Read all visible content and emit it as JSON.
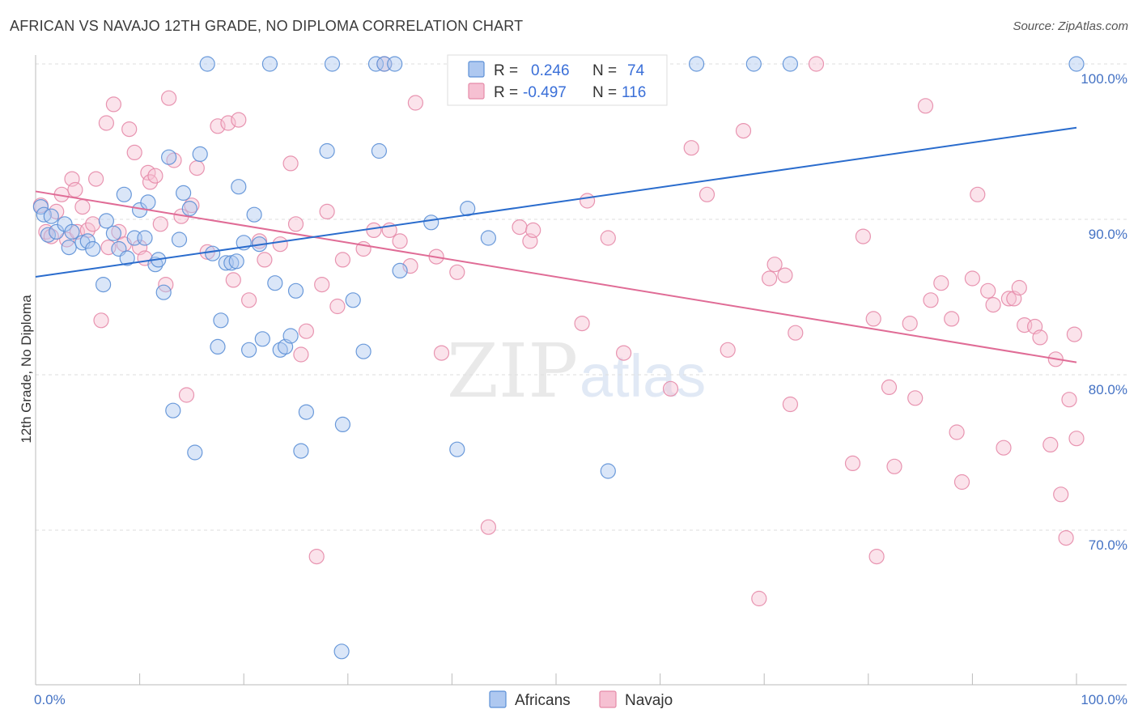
{
  "header": {
    "title": "AFRICAN VS NAVAJO 12TH GRADE, NO DIPLOMA CORRELATION CHART",
    "source": "Source: ZipAtlas.com"
  },
  "watermark": {
    "zip": "ZIP",
    "atlas": "atlas"
  },
  "colors": {
    "africans_fill": "#aec8f0",
    "africans_stroke": "#5b8fd6",
    "africans_line": "#2a6ccd",
    "navajo_fill": "#f6c0d2",
    "navajo_stroke": "#e58aa8",
    "navajo_line": "#e06c96"
  },
  "legend": {
    "r_label": "R =",
    "n_label": "N =",
    "africans": {
      "r": "0.246",
      "n": "74"
    },
    "navajo": {
      "r": "-0.497",
      "n": "116"
    }
  },
  "bottom_legend": {
    "africans": "Africans",
    "navajo": "Navajo"
  },
  "chart_data": {
    "type": "scatter",
    "title": "AFRICAN VS NAVAJO 12TH GRADE, NO DIPLOMA CORRELATION CHART",
    "xlabel": "",
    "ylabel": "12th Grade, No Diploma",
    "x_tick_labels": [
      "0.0%",
      "100.0%"
    ],
    "y_tick_labels": [
      "100.0%",
      "90.0%",
      "80.0%",
      "70.0%"
    ],
    "xlim": [
      0,
      100
    ],
    "ylim": [
      60.5,
      102
    ],
    "grid": true,
    "legend_position": "top-center",
    "series": [
      {
        "name": "Africans",
        "trend": {
          "x": [
            0,
            100
          ],
          "y": [
            86.3,
            95.9
          ]
        },
        "points": [
          [
            0.5,
            90.8
          ],
          [
            0.8,
            90.3
          ],
          [
            1.2,
            89.0
          ],
          [
            1.5,
            90.2
          ],
          [
            2.0,
            89.2
          ],
          [
            2.8,
            89.7
          ],
          [
            3.2,
            88.2
          ],
          [
            3.5,
            89.2
          ],
          [
            4.5,
            88.5
          ],
          [
            5.0,
            88.6
          ],
          [
            5.5,
            88.1
          ],
          [
            6.5,
            85.8
          ],
          [
            6.8,
            89.9
          ],
          [
            7.5,
            89.1
          ],
          [
            8.0,
            88.1
          ],
          [
            8.5,
            91.6
          ],
          [
            8.8,
            87.5
          ],
          [
            9.5,
            88.8
          ],
          [
            10.0,
            90.6
          ],
          [
            10.5,
            88.8
          ],
          [
            10.8,
            91.1
          ],
          [
            11.5,
            87.1
          ],
          [
            11.8,
            87.4
          ],
          [
            12.3,
            85.3
          ],
          [
            12.8,
            94.0
          ],
          [
            13.2,
            77.7
          ],
          [
            13.8,
            88.7
          ],
          [
            14.2,
            91.7
          ],
          [
            14.8,
            90.7
          ],
          [
            15.3,
            75.0
          ],
          [
            15.8,
            94.2
          ],
          [
            16.5,
            100.0
          ],
          [
            17.0,
            87.8
          ],
          [
            17.5,
            81.8
          ],
          [
            17.8,
            83.5
          ],
          [
            18.3,
            87.2
          ],
          [
            18.8,
            87.2
          ],
          [
            19.3,
            87.3
          ],
          [
            19.5,
            92.1
          ],
          [
            20.0,
            88.5
          ],
          [
            20.5,
            81.6
          ],
          [
            21.0,
            90.3
          ],
          [
            21.5,
            88.4
          ],
          [
            21.8,
            82.3
          ],
          [
            22.5,
            100.0
          ],
          [
            23.0,
            85.9
          ],
          [
            23.5,
            81.6
          ],
          [
            24.0,
            81.8
          ],
          [
            24.5,
            82.5
          ],
          [
            25.0,
            85.4
          ],
          [
            25.5,
            75.1
          ],
          [
            26.0,
            77.6
          ],
          [
            28.0,
            94.4
          ],
          [
            28.5,
            100.0
          ],
          [
            29.5,
            76.8
          ],
          [
            30.5,
            84.8
          ],
          [
            31.5,
            81.5
          ],
          [
            32.7,
            100.0
          ],
          [
            33.0,
            94.4
          ],
          [
            33.5,
            100.0
          ],
          [
            34.5,
            100.0
          ],
          [
            35.0,
            86.7
          ],
          [
            38.0,
            89.8
          ],
          [
            40.5,
            75.2
          ],
          [
            41.5,
            90.7
          ],
          [
            43.5,
            88.8
          ],
          [
            52.0,
            100.0
          ],
          [
            55.0,
            73.8
          ],
          [
            63.5,
            100.0
          ],
          [
            69.0,
            100.0
          ],
          [
            72.5,
            100.0
          ],
          [
            100.0,
            100.0
          ],
          [
            29.4,
            62.2
          ],
          [
            56.5,
            100.0
          ]
        ]
      },
      {
        "name": "Navajo",
        "trend": {
          "x": [
            0,
            100
          ],
          "y": [
            91.8,
            80.8
          ]
        },
        "points": [
          [
            0.5,
            90.9
          ],
          [
            1.0,
            89.2
          ],
          [
            1.5,
            88.9
          ],
          [
            2.0,
            90.5
          ],
          [
            2.5,
            91.6
          ],
          [
            3.0,
            88.7
          ],
          [
            3.5,
            92.6
          ],
          [
            3.8,
            91.9
          ],
          [
            4.0,
            89.2
          ],
          [
            4.5,
            90.8
          ],
          [
            5.0,
            89.3
          ],
          [
            5.5,
            89.7
          ],
          [
            5.8,
            92.6
          ],
          [
            6.3,
            83.5
          ],
          [
            6.8,
            96.2
          ],
          [
            7.0,
            88.2
          ],
          [
            7.5,
            97.4
          ],
          [
            8.0,
            89.2
          ],
          [
            8.5,
            88.4
          ],
          [
            9.0,
            95.8
          ],
          [
            9.5,
            94.3
          ],
          [
            10.0,
            88.2
          ],
          [
            10.5,
            87.5
          ],
          [
            10.8,
            93.0
          ],
          [
            11.0,
            92.4
          ],
          [
            11.5,
            92.8
          ],
          [
            12.0,
            89.7
          ],
          [
            12.5,
            85.8
          ],
          [
            12.8,
            97.8
          ],
          [
            13.3,
            93.8
          ],
          [
            14.0,
            90.2
          ],
          [
            14.5,
            78.7
          ],
          [
            15.0,
            90.9
          ],
          [
            15.5,
            93.3
          ],
          [
            16.5,
            87.9
          ],
          [
            17.5,
            96.0
          ],
          [
            18.5,
            96.2
          ],
          [
            19.0,
            86.1
          ],
          [
            19.5,
            96.4
          ],
          [
            20.5,
            84.8
          ],
          [
            21.5,
            88.6
          ],
          [
            22.0,
            87.4
          ],
          [
            23.5,
            88.4
          ],
          [
            24.5,
            93.6
          ],
          [
            25.0,
            89.7
          ],
          [
            25.5,
            81.3
          ],
          [
            26.0,
            82.8
          ],
          [
            27.0,
            68.3
          ],
          [
            27.5,
            85.8
          ],
          [
            28.0,
            90.5
          ],
          [
            29.0,
            84.4
          ],
          [
            29.5,
            87.4
          ],
          [
            31.5,
            88.1
          ],
          [
            32.5,
            89.3
          ],
          [
            33.5,
            100.0
          ],
          [
            34.0,
            89.3
          ],
          [
            35.0,
            88.6
          ],
          [
            36.0,
            87.0
          ],
          [
            36.5,
            97.5
          ],
          [
            38.5,
            87.6
          ],
          [
            39.0,
            81.4
          ],
          [
            40.5,
            86.6
          ],
          [
            43.5,
            70.2
          ],
          [
            46.5,
            89.5
          ],
          [
            47.5,
            88.6
          ],
          [
            47.8,
            89.3
          ],
          [
            52.5,
            83.3
          ],
          [
            53.0,
            91.2
          ],
          [
            55.0,
            88.8
          ],
          [
            56.5,
            81.4
          ],
          [
            58.0,
            100.0
          ],
          [
            59.5,
            100.0
          ],
          [
            61.0,
            79.1
          ],
          [
            63.0,
            94.6
          ],
          [
            64.5,
            91.6
          ],
          [
            66.5,
            81.6
          ],
          [
            68.0,
            95.7
          ],
          [
            69.5,
            65.6
          ],
          [
            70.5,
            86.2
          ],
          [
            71.0,
            87.1
          ],
          [
            72.0,
            86.4
          ],
          [
            72.5,
            78.1
          ],
          [
            73.0,
            82.7
          ],
          [
            75.0,
            100.0
          ],
          [
            78.5,
            74.3
          ],
          [
            79.5,
            88.9
          ],
          [
            80.5,
            83.6
          ],
          [
            80.8,
            68.3
          ],
          [
            82.0,
            79.2
          ],
          [
            82.5,
            74.1
          ],
          [
            84.0,
            83.3
          ],
          [
            84.5,
            78.5
          ],
          [
            85.5,
            97.3
          ],
          [
            86.0,
            84.8
          ],
          [
            87.0,
            85.9
          ],
          [
            88.0,
            83.6
          ],
          [
            88.5,
            76.3
          ],
          [
            89.0,
            73.1
          ],
          [
            90.0,
            86.2
          ],
          [
            90.5,
            91.6
          ],
          [
            91.5,
            85.4
          ],
          [
            92.0,
            84.5
          ],
          [
            93.0,
            75.3
          ],
          [
            93.5,
            84.9
          ],
          [
            94.0,
            84.9
          ],
          [
            94.5,
            85.6
          ],
          [
            95.0,
            83.2
          ],
          [
            96.0,
            83.1
          ],
          [
            96.5,
            82.4
          ],
          [
            97.5,
            75.5
          ],
          [
            98.0,
            81.0
          ],
          [
            98.5,
            72.3
          ],
          [
            99.0,
            69.5
          ],
          [
            99.3,
            78.4
          ],
          [
            99.8,
            82.6
          ],
          [
            100.0,
            75.9
          ]
        ]
      }
    ]
  }
}
